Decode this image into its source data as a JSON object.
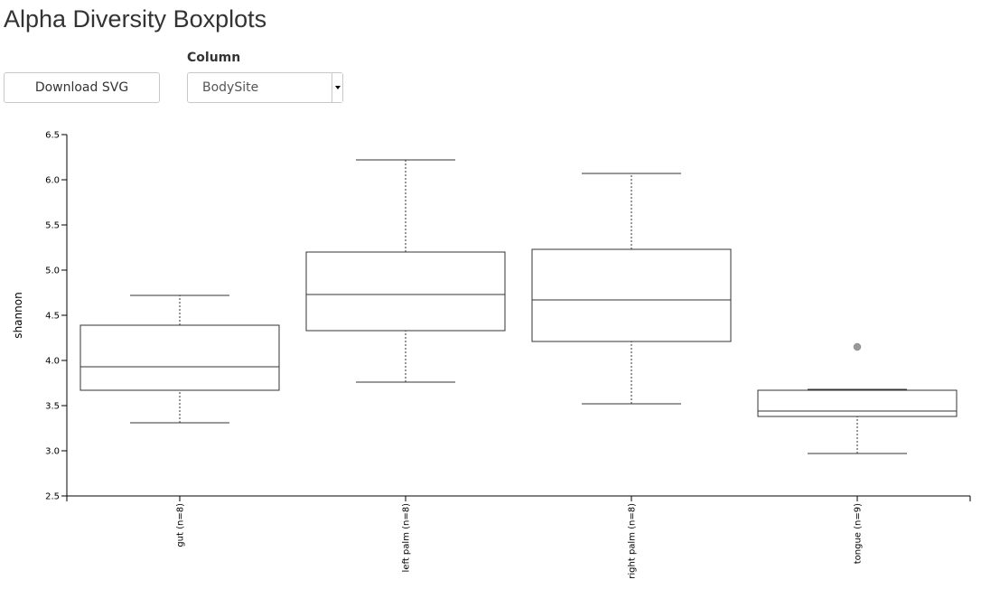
{
  "page": {
    "title": "Alpha Diversity Boxplots"
  },
  "controls": {
    "download_label": "Download SVG",
    "column_label": "Column",
    "column_selected": "BodySite"
  },
  "icons": {
    "select_arrow": "caret-down-icon"
  },
  "chart_data": {
    "type": "boxplot",
    "title": "",
    "xlabel": "",
    "ylabel": "shannon",
    "ylim": [
      2.5,
      6.5
    ],
    "yticks": [
      2.5,
      3.0,
      3.5,
      4.0,
      4.5,
      5.0,
      5.5,
      6.0,
      6.5
    ],
    "grid": false,
    "legend": "none",
    "box_color": "#333333",
    "outlier_color": "#999999",
    "categories": [
      "gut (n=8)",
      "left palm (n=8)",
      "right palm (n=8)",
      "tongue (n=9)"
    ],
    "boxes": [
      {
        "label": "gut (n=8)",
        "min": 3.31,
        "q1": 3.67,
        "median": 3.93,
        "q3": 4.39,
        "max": 4.72,
        "outliers": []
      },
      {
        "label": "left palm (n=8)",
        "min": 3.76,
        "q1": 4.33,
        "median": 4.73,
        "q3": 5.2,
        "max": 6.22,
        "outliers": []
      },
      {
        "label": "right palm (n=8)",
        "min": 3.52,
        "q1": 4.21,
        "median": 4.67,
        "q3": 5.23,
        "max": 6.07,
        "outliers": []
      },
      {
        "label": "tongue (n=9)",
        "min": 2.97,
        "q1": 3.38,
        "median": 3.44,
        "q3": 3.67,
        "max": 3.68,
        "outliers": [
          4.15
        ]
      }
    ]
  }
}
